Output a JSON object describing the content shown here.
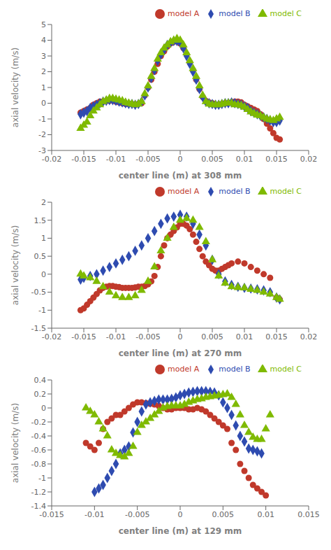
{
  "chart_data": [
    {
      "type": "scatter",
      "xlabel": "center line (m) at 308 mm",
      "ylabel": "axial velocity (m/s)",
      "xlim": [
        -0.02,
        0.02
      ],
      "ylim": [
        -3,
        5
      ],
      "xticks": [
        -0.02,
        -0.015,
        -0.01,
        -0.005,
        0,
        0.005,
        0.01,
        0.015,
        0.02
      ],
      "yticks": [
        -3,
        -2,
        -1,
        0,
        1,
        2,
        3,
        4,
        5
      ],
      "legend": "upper right",
      "grid": false,
      "series": [
        {
          "name": "model A",
          "color": "#c0392b",
          "marker": "circle",
          "x": [
            -0.0155,
            -0.015,
            -0.0145,
            -0.014,
            -0.0135,
            -0.013,
            -0.0125,
            -0.012,
            -0.0115,
            -0.011,
            -0.0105,
            -0.01,
            -0.0095,
            -0.009,
            -0.0085,
            -0.008,
            -0.0075,
            -0.007,
            -0.0065,
            -0.006,
            -0.0055,
            -0.005,
            -0.0045,
            -0.004,
            -0.0035,
            -0.003,
            -0.0025,
            -0.002,
            -0.0015,
            -0.001,
            -0.0005,
            0,
            0.0005,
            0.001,
            0.0015,
            0.002,
            0.0025,
            0.003,
            0.0035,
            0.004,
            0.0045,
            0.005,
            0.0055,
            0.006,
            0.0065,
            0.007,
            0.0075,
            0.008,
            0.0085,
            0.009,
            0.0095,
            0.01,
            0.0105,
            0.011,
            0.0115,
            0.012,
            0.0125,
            0.013,
            0.0135,
            0.014,
            0.0145,
            0.015,
            0.0155
          ],
          "values": [
            -0.6,
            -0.5,
            -0.4,
            -0.3,
            -0.1,
            0.0,
            0.1,
            0.1,
            0.15,
            0.15,
            0.2,
            0.1,
            0.05,
            0.0,
            -0.05,
            -0.05,
            -0.05,
            -0.1,
            -0.05,
            0.0,
            0.5,
            1.0,
            1.5,
            2.0,
            2.5,
            3.0,
            3.3,
            3.6,
            3.8,
            3.9,
            3.95,
            3.8,
            3.5,
            3.1,
            2.6,
            2.1,
            1.5,
            0.9,
            0.4,
            0.15,
            0.05,
            0.0,
            -0.1,
            -0.1,
            -0.05,
            0.0,
            0.0,
            0.05,
            0.1,
            0.1,
            0.05,
            -0.1,
            -0.2,
            -0.3,
            -0.4,
            -0.5,
            -0.7,
            -1.0,
            -1.3,
            -1.6,
            -1.9,
            -2.2,
            -2.3
          ]
        },
        {
          "name": "model B",
          "color": "#2e4bb0",
          "marker": "diamond",
          "x": [
            -0.0155,
            -0.015,
            -0.0145,
            -0.014,
            -0.0135,
            -0.013,
            -0.0125,
            -0.012,
            -0.0115,
            -0.011,
            -0.0105,
            -0.01,
            -0.0095,
            -0.009,
            -0.0085,
            -0.008,
            -0.0075,
            -0.007,
            -0.0065,
            -0.006,
            -0.0055,
            -0.005,
            -0.0045,
            -0.004,
            -0.0035,
            -0.003,
            -0.0025,
            -0.002,
            -0.0015,
            -0.001,
            -0.0005,
            0,
            0.0005,
            0.001,
            0.0015,
            0.002,
            0.0025,
            0.003,
            0.0035,
            0.004,
            0.0045,
            0.005,
            0.0055,
            0.006,
            0.0065,
            0.007,
            0.0075,
            0.008,
            0.0085,
            0.009,
            0.0095,
            0.01,
            0.0105,
            0.011,
            0.0115,
            0.012,
            0.0125,
            0.013,
            0.0135,
            0.014,
            0.0145,
            0.015,
            0.0155
          ],
          "values": [
            -0.7,
            -0.6,
            -0.5,
            -0.3,
            -0.2,
            -0.1,
            0.0,
            0.1,
            0.15,
            0.2,
            0.2,
            0.15,
            0.1,
            0.05,
            0.0,
            -0.05,
            -0.05,
            -0.1,
            -0.05,
            0.1,
            0.5,
            1.0,
            1.6,
            2.1,
            2.7,
            3.1,
            3.4,
            3.7,
            3.85,
            3.95,
            3.95,
            3.85,
            3.5,
            3.0,
            2.5,
            2.0,
            1.5,
            0.9,
            0.4,
            0.1,
            0.0,
            -0.05,
            -0.1,
            -0.1,
            -0.05,
            0.0,
            0.0,
            0.05,
            0.0,
            -0.05,
            -0.1,
            -0.2,
            -0.3,
            -0.5,
            -0.6,
            -0.7,
            -0.8,
            -0.9,
            -1.0,
            -1.1,
            -1.2,
            -1.2,
            -1.1
          ]
        },
        {
          "name": "model C",
          "color": "#7fba00",
          "marker": "triangle",
          "x": [
            -0.0155,
            -0.015,
            -0.0145,
            -0.014,
            -0.0135,
            -0.013,
            -0.0125,
            -0.012,
            -0.0115,
            -0.011,
            -0.0105,
            -0.01,
            -0.0095,
            -0.009,
            -0.0085,
            -0.008,
            -0.0075,
            -0.007,
            -0.0065,
            -0.006,
            -0.0055,
            -0.005,
            -0.0045,
            -0.004,
            -0.0035,
            -0.003,
            -0.0025,
            -0.002,
            -0.0015,
            -0.001,
            -0.0005,
            0,
            0.0005,
            0.001,
            0.0015,
            0.002,
            0.0025,
            0.003,
            0.0035,
            0.004,
            0.0045,
            0.005,
            0.0055,
            0.006,
            0.0065,
            0.007,
            0.0075,
            0.008,
            0.0085,
            0.009,
            0.0095,
            0.01,
            0.0105,
            0.011,
            0.0115,
            0.012,
            0.0125,
            0.013,
            0.0135,
            0.014,
            0.0145,
            0.015,
            0.0155
          ],
          "values": [
            -1.6,
            -1.4,
            -1.2,
            -0.8,
            -0.5,
            -0.3,
            -0.1,
            0.1,
            0.2,
            0.3,
            0.3,
            0.25,
            0.2,
            0.15,
            0.05,
            0.0,
            -0.05,
            -0.1,
            -0.05,
            0.1,
            0.6,
            1.1,
            1.7,
            2.2,
            2.8,
            3.2,
            3.5,
            3.7,
            3.9,
            4.0,
            4.1,
            4.0,
            3.7,
            3.2,
            2.7,
            2.2,
            1.7,
            1.1,
            0.5,
            0.1,
            -0.05,
            -0.1,
            -0.1,
            -0.1,
            -0.05,
            0.0,
            0.0,
            0.0,
            -0.1,
            -0.1,
            -0.15,
            -0.25,
            -0.4,
            -0.55,
            -0.65,
            -0.75,
            -0.8,
            -0.9,
            -1.0,
            -1.05,
            -1.1,
            -1.0,
            -0.9
          ]
        }
      ]
    },
    {
      "type": "scatter",
      "xlabel": "center line (m) at 270 mm",
      "ylabel": "axial velocity (m/s)",
      "xlim": [
        -0.02,
        0.02
      ],
      "ylim": [
        -1.5,
        2.0
      ],
      "xticks": [
        -0.02,
        -0.015,
        -0.01,
        -0.005,
        0,
        0.005,
        0.01,
        0.015,
        0.02
      ],
      "yticks": [
        -1.5,
        -1.0,
        -0.5,
        0,
        0.5,
        1.0,
        1.5,
        2.0
      ],
      "legend": "upper right",
      "grid": false,
      "series": [
        {
          "name": "model A",
          "color": "#c0392b",
          "marker": "circle",
          "x": [
            -0.0155,
            -0.015,
            -0.0145,
            -0.014,
            -0.0135,
            -0.013,
            -0.0125,
            -0.012,
            -0.0115,
            -0.011,
            -0.0105,
            -0.01,
            -0.0095,
            -0.009,
            -0.0085,
            -0.008,
            -0.0075,
            -0.007,
            -0.0065,
            -0.006,
            -0.0055,
            -0.005,
            -0.0045,
            -0.004,
            -0.0035,
            -0.003,
            -0.0025,
            -0.002,
            -0.0015,
            -0.001,
            -0.0005,
            0,
            0.0005,
            0.001,
            0.0015,
            0.002,
            0.0025,
            0.003,
            0.0035,
            0.004,
            0.0045,
            0.005,
            0.0055,
            0.006,
            0.0065,
            0.007,
            0.0075,
            0.008,
            0.009,
            0.01,
            0.011,
            0.012,
            0.013,
            0.014,
            0.015,
            0.0155
          ],
          "values": [
            -1.0,
            -0.95,
            -0.85,
            -0.75,
            -0.65,
            -0.55,
            -0.45,
            -0.38,
            -0.35,
            -0.33,
            -0.33,
            -0.35,
            -0.36,
            -0.38,
            -0.38,
            -0.38,
            -0.38,
            -0.37,
            -0.35,
            -0.35,
            -0.33,
            -0.28,
            -0.2,
            -0.05,
            0.2,
            0.5,
            0.8,
            1.0,
            1.1,
            1.2,
            1.3,
            1.4,
            1.4,
            1.35,
            1.25,
            1.1,
            0.9,
            0.7,
            0.5,
            0.35,
            0.25,
            0.15,
            0.1,
            0.1,
            0.15,
            0.2,
            0.25,
            0.3,
            0.35,
            0.3,
            0.2,
            0.1,
            0.0,
            -0.1,
            -0.65,
            -0.7
          ]
        },
        {
          "name": "model B",
          "color": "#2e4bb0",
          "marker": "diamond",
          "x": [
            -0.0155,
            -0.015,
            -0.014,
            -0.013,
            -0.012,
            -0.011,
            -0.01,
            -0.009,
            -0.008,
            -0.007,
            -0.006,
            -0.005,
            -0.004,
            -0.003,
            -0.002,
            -0.001,
            0,
            0.001,
            0.002,
            0.003,
            0.004,
            0.005,
            0.006,
            0.007,
            0.008,
            0.009,
            0.01,
            0.011,
            0.012,
            0.013,
            0.014,
            0.015,
            0.0155
          ],
          "values": [
            -0.15,
            -0.1,
            -0.05,
            0.0,
            0.1,
            0.2,
            0.3,
            0.4,
            0.5,
            0.65,
            0.8,
            1.0,
            1.2,
            1.4,
            1.55,
            1.6,
            1.65,
            1.6,
            1.4,
            1.1,
            0.8,
            0.4,
            0.0,
            -0.2,
            -0.3,
            -0.35,
            -0.38,
            -0.4,
            -0.42,
            -0.45,
            -0.5,
            -0.65,
            -0.7
          ]
        },
        {
          "name": "model C",
          "color": "#7fba00",
          "marker": "triangle",
          "x": [
            -0.0155,
            -0.015,
            -0.014,
            -0.013,
            -0.012,
            -0.011,
            -0.01,
            -0.009,
            -0.008,
            -0.007,
            -0.006,
            -0.005,
            -0.004,
            -0.003,
            -0.002,
            -0.001,
            0,
            0.001,
            0.002,
            0.003,
            0.004,
            0.005,
            0.006,
            0.007,
            0.008,
            0.009,
            0.01,
            0.011,
            0.012,
            0.013,
            0.014,
            0.015,
            0.0155
          ],
          "values": [
            0.0,
            -0.05,
            -0.1,
            -0.2,
            -0.35,
            -0.5,
            -0.6,
            -0.65,
            -0.65,
            -0.6,
            -0.45,
            -0.2,
            0.2,
            0.65,
            1.0,
            1.3,
            1.5,
            1.55,
            1.5,
            1.3,
            0.9,
            0.4,
            -0.05,
            -0.25,
            -0.35,
            -0.37,
            -0.38,
            -0.42,
            -0.45,
            -0.5,
            -0.55,
            -0.65,
            -0.7
          ]
        }
      ]
    },
    {
      "type": "scatter",
      "xlabel": "center line (m) at 129 mm",
      "ylabel": "axial velocity (m/s)",
      "xlim": [
        -0.015,
        0.015
      ],
      "ylim": [
        -1.4,
        0.4
      ],
      "xticks": [
        -0.015,
        -0.01,
        -0.005,
        0,
        0.005,
        0.01,
        0.015
      ],
      "yticks": [
        -1.4,
        -1.2,
        -1.0,
        -0.8,
        -0.6,
        -0.4,
        -0.2,
        0.0,
        0.2,
        0.4
      ],
      "legend": "upper right",
      "grid": false,
      "series": [
        {
          "name": "model A",
          "color": "#c0392b",
          "marker": "circle",
          "x": [
            -0.011,
            -0.0105,
            -0.01,
            -0.0095,
            -0.009,
            -0.0085,
            -0.008,
            -0.0075,
            -0.007,
            -0.0065,
            -0.006,
            -0.0055,
            -0.005,
            -0.0045,
            -0.004,
            -0.0035,
            -0.003,
            -0.0025,
            -0.002,
            -0.0015,
            -0.001,
            -0.0005,
            0,
            0.0005,
            0.001,
            0.0015,
            0.002,
            0.0025,
            0.003,
            0.0035,
            0.004,
            0.0045,
            0.005,
            0.0055,
            0.006,
            0.0065,
            0.007,
            0.0075,
            0.008,
            0.0085,
            0.009,
            0.0095,
            0.01
          ],
          "values": [
            -0.5,
            -0.55,
            -0.6,
            -0.5,
            -0.3,
            -0.2,
            -0.15,
            -0.1,
            -0.1,
            -0.05,
            0.0,
            0.05,
            0.08,
            0.08,
            0.07,
            0.06,
            0.05,
            0.03,
            0.0,
            -0.02,
            -0.02,
            0.0,
            0.0,
            0.0,
            -0.02,
            -0.02,
            0.0,
            -0.02,
            -0.05,
            -0.1,
            -0.15,
            -0.2,
            -0.25,
            -0.3,
            -0.5,
            -0.6,
            -0.8,
            -0.9,
            -1.0,
            -1.1,
            -1.15,
            -1.2,
            -1.25
          ]
        },
        {
          "name": "model B",
          "color": "#2e4bb0",
          "marker": "diamond",
          "x": [
            -0.01,
            -0.0095,
            -0.009,
            -0.0085,
            -0.008,
            -0.0075,
            -0.007,
            -0.0065,
            -0.006,
            -0.0055,
            -0.005,
            -0.0045,
            -0.004,
            -0.0035,
            -0.003,
            -0.0025,
            -0.002,
            -0.0015,
            -0.001,
            -0.0005,
            0,
            0.0005,
            0.001,
            0.0015,
            0.002,
            0.0025,
            0.003,
            0.0035,
            0.004,
            0.0045,
            0.005,
            0.0055,
            0.006,
            0.0065,
            0.007,
            0.0075,
            0.008,
            0.0085,
            0.009,
            0.0095
          ],
          "values": [
            -1.2,
            -1.15,
            -1.1,
            -1.0,
            -0.9,
            -0.8,
            -0.65,
            -0.6,
            -0.55,
            -0.35,
            -0.2,
            -0.05,
            0.05,
            0.08,
            0.1,
            0.12,
            0.12,
            0.12,
            0.13,
            0.15,
            0.18,
            0.2,
            0.22,
            0.23,
            0.24,
            0.24,
            0.24,
            0.23,
            0.22,
            0.18,
            0.08,
            0.0,
            -0.1,
            -0.25,
            -0.4,
            -0.48,
            -0.58,
            -0.6,
            -0.62,
            -0.65
          ]
        },
        {
          "name": "model C",
          "color": "#7fba00",
          "marker": "triangle",
          "x": [
            -0.011,
            -0.0105,
            -0.01,
            -0.0095,
            -0.009,
            -0.0085,
            -0.008,
            -0.0075,
            -0.007,
            -0.0065,
            -0.006,
            -0.0055,
            -0.005,
            -0.0045,
            -0.004,
            -0.0035,
            -0.003,
            -0.0025,
            -0.002,
            -0.0015,
            -0.001,
            -0.0005,
            0,
            0.0005,
            0.001,
            0.0015,
            0.002,
            0.0025,
            0.003,
            0.0035,
            0.004,
            0.0045,
            0.005,
            0.0055,
            0.006,
            0.0065,
            0.007,
            0.0075,
            0.008,
            0.0085,
            0.009,
            0.0095,
            0.01,
            0.0105
          ],
          "values": [
            0.0,
            -0.05,
            -0.1,
            -0.2,
            -0.3,
            -0.4,
            -0.6,
            -0.65,
            -0.68,
            -0.7,
            -0.65,
            -0.55,
            -0.35,
            -0.25,
            -0.2,
            -0.15,
            -0.1,
            -0.05,
            0.0,
            0.02,
            0.03,
            0.03,
            0.03,
            0.05,
            0.08,
            0.1,
            0.12,
            0.13,
            0.15,
            0.16,
            0.17,
            0.18,
            0.19,
            0.2,
            0.15,
            0.05,
            -0.1,
            -0.25,
            -0.35,
            -0.42,
            -0.45,
            -0.45,
            -0.3,
            -0.1
          ]
        }
      ]
    }
  ]
}
